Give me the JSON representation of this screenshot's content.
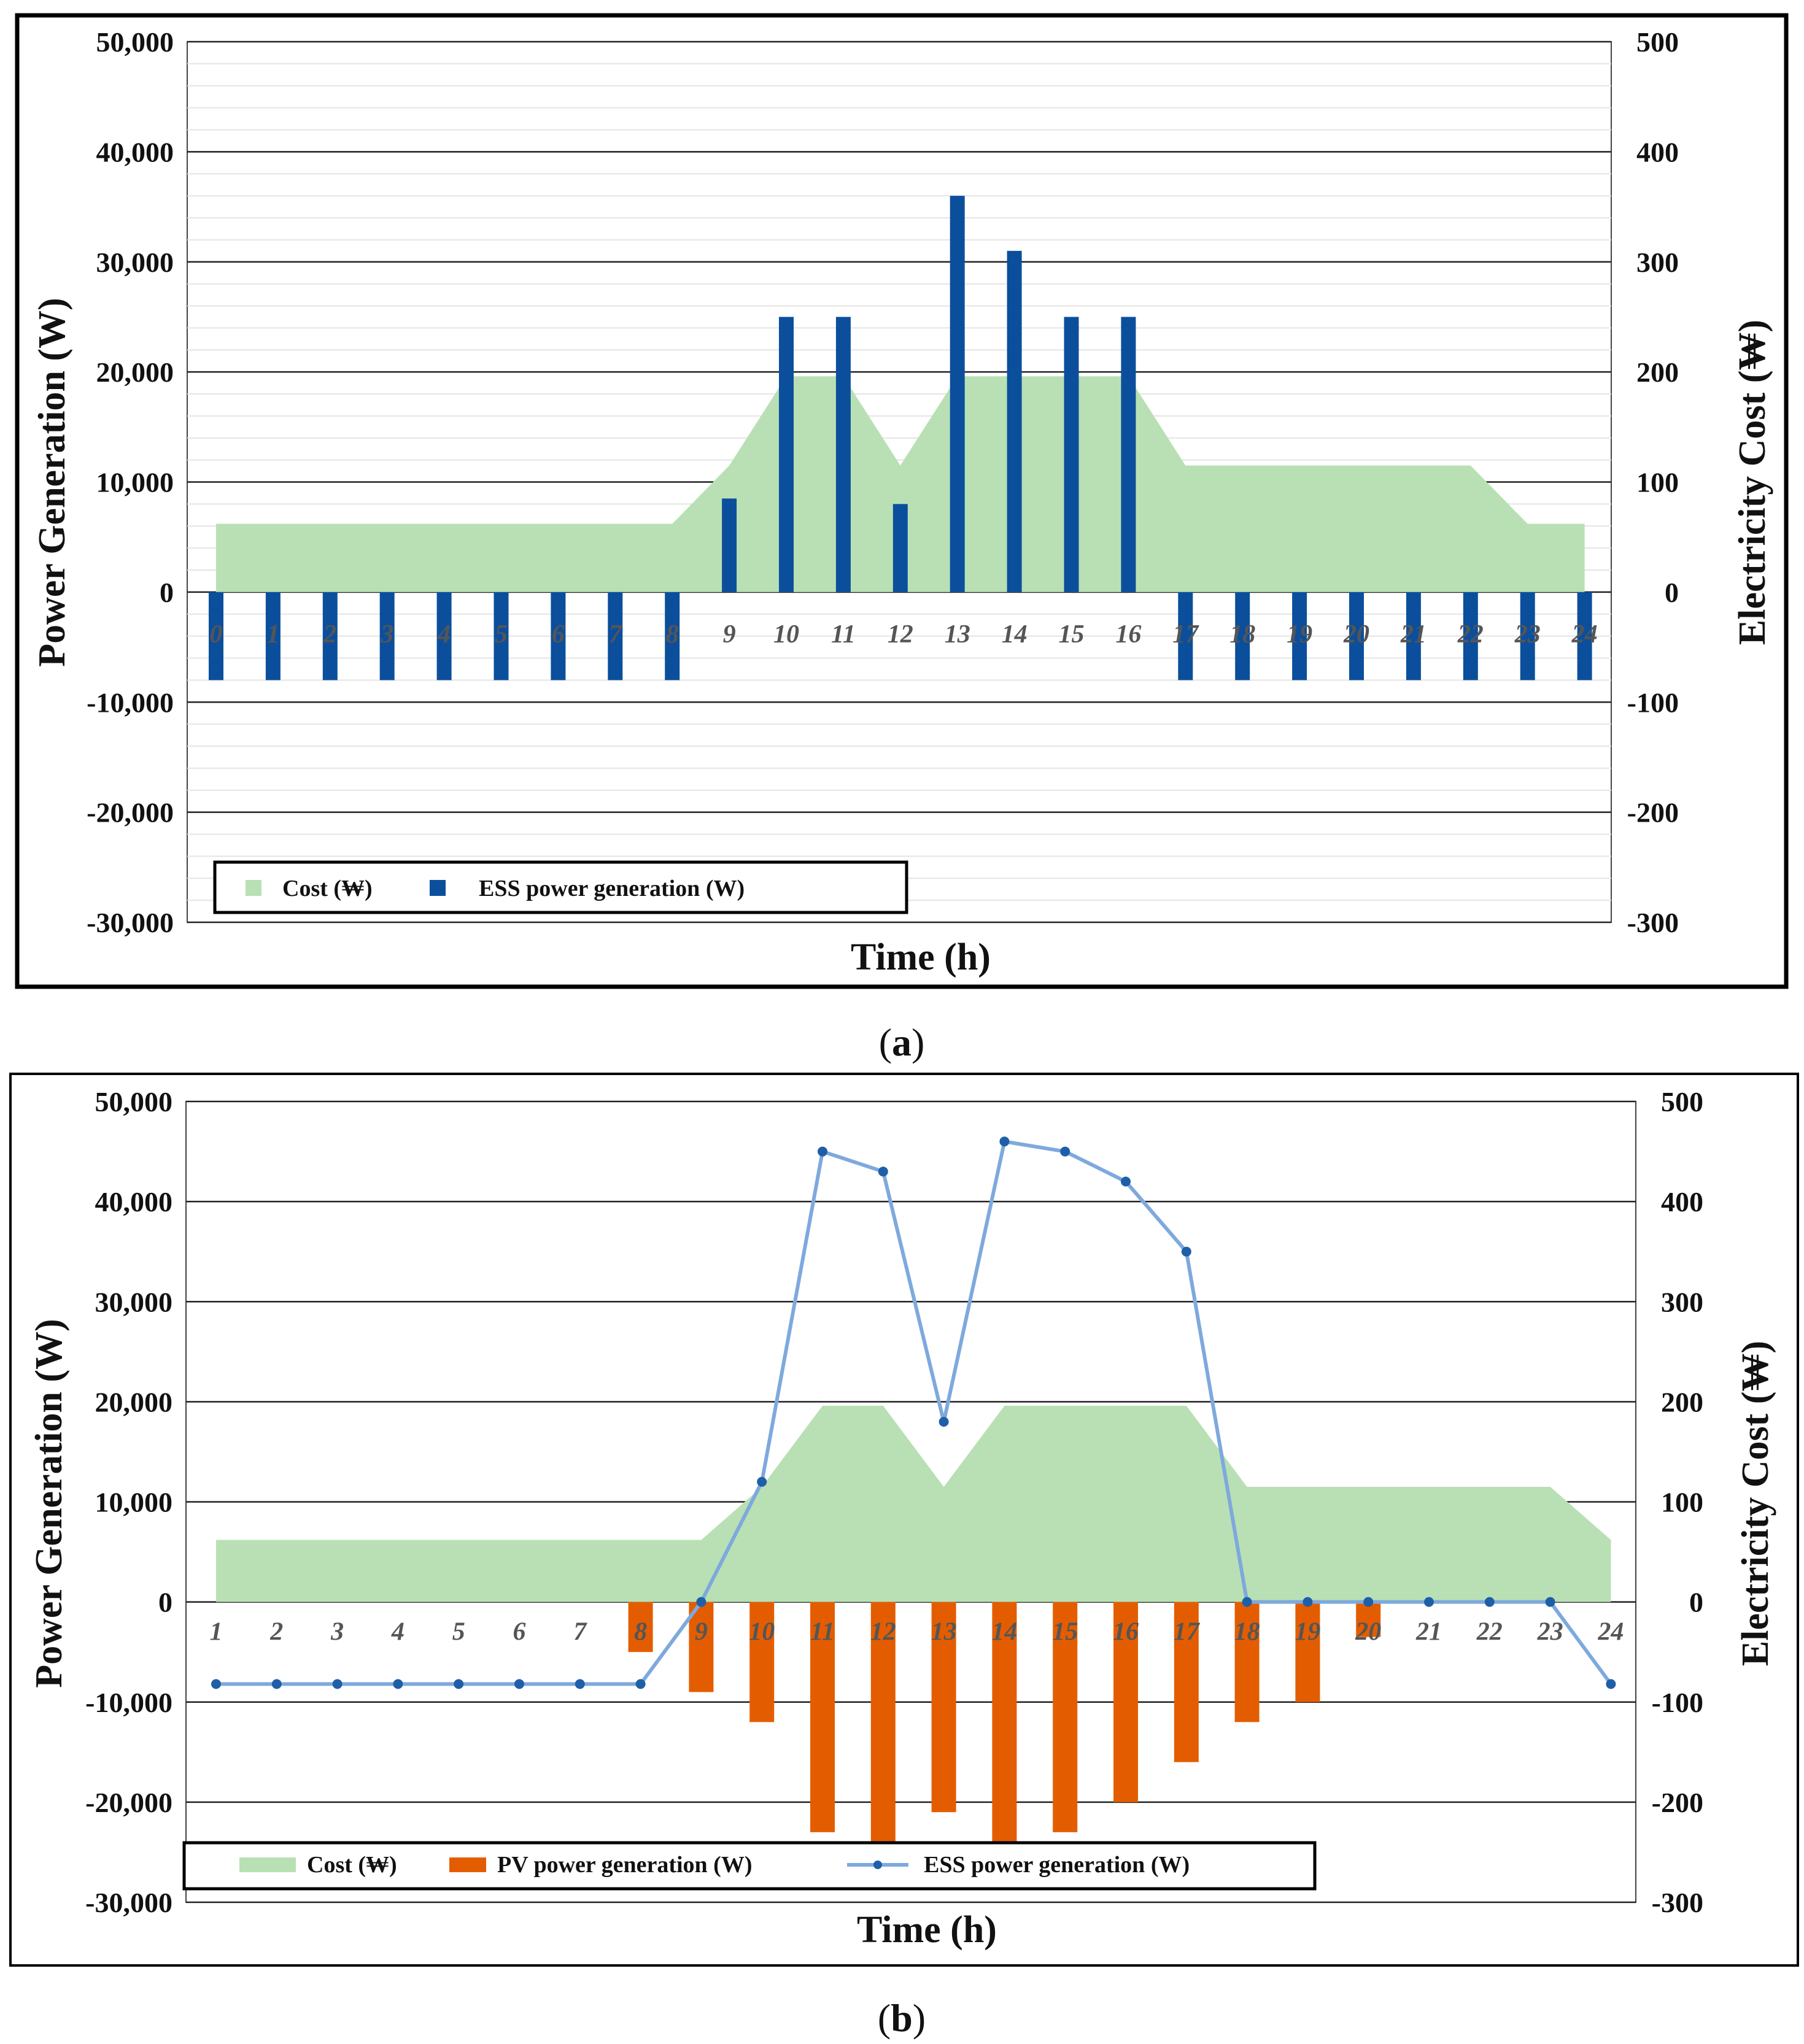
{
  "figure_a": {
    "caption_open": "(",
    "caption_letter": "a",
    "caption_close": ")",
    "xlabel": "Time (h)",
    "ylabel_left": "Power Generation (W)",
    "ylabel_right": "Electricity Cost (₩)",
    "legend": [
      "Cost (₩)",
      "ESS power generation (W)"
    ]
  },
  "figure_b": {
    "caption_open": "(",
    "caption_letter": "b",
    "caption_close": ")",
    "xlabel": "Time (h)",
    "ylabel_left": "Power Generation (W)",
    "ylabel_right": "Electricity Cost (₩)",
    "legend": [
      "Cost (₩)",
      "PV power generation (W)",
      "ESS power generation (W)"
    ]
  },
  "colors": {
    "cost": "#b9e0b4",
    "ess_bar": "#0b4f9c",
    "pv_bar": "#e35d00",
    "ess_line": "#7ea9dd",
    "ess_marker": "#1f5fa8",
    "grid_major": "#222222",
    "grid_minor": "#e4e4e4"
  },
  "chart_data": [
    {
      "id": "a",
      "type": "bar",
      "title": "",
      "xlabel": "Time (h)",
      "ylabel": "Power Generation (W)",
      "y2label": "Electricity Cost (₩)",
      "ylim": [
        -30000,
        50000
      ],
      "y2lim": [
        -300,
        500
      ],
      "yticks": [
        "50,000",
        "40,000",
        "30,000",
        "20,000",
        "10,000",
        "0",
        "-10,000",
        "-20,000",
        "-30,000"
      ],
      "y2ticks": [
        "500",
        "400",
        "300",
        "200",
        "100",
        "0",
        "-100",
        "-200",
        "-300"
      ],
      "categories": [
        "0",
        "1",
        "2",
        "3",
        "4",
        "5",
        "6",
        "7",
        "8",
        "9",
        "10",
        "11",
        "12",
        "13",
        "14",
        "15",
        "16",
        "17",
        "18",
        "19",
        "20",
        "21",
        "22",
        "23",
        "24"
      ],
      "series": [
        {
          "name": "Cost (₩)",
          "type": "area",
          "axis": "right",
          "values": [
            62,
            62,
            62,
            62,
            62,
            62,
            62,
            62,
            62,
            115,
            196,
            196,
            115,
            196,
            196,
            196,
            196,
            115,
            115,
            115,
            115,
            115,
            115,
            62,
            62
          ]
        },
        {
          "name": "ESS power generation (W)",
          "type": "bar",
          "axis": "left",
          "values": [
            -8000,
            -8000,
            -8000,
            -8000,
            -8000,
            -8000,
            -8000,
            -8000,
            -8000,
            8500,
            25000,
            25000,
            8000,
            36000,
            31000,
            25000,
            25000,
            -8000,
            -8000,
            -8000,
            -8000,
            -8000,
            -8000,
            -8000,
            -8000
          ]
        }
      ]
    },
    {
      "id": "b",
      "type": "bar",
      "title": "",
      "xlabel": "Time (h)",
      "ylabel": "Power Generation (W)",
      "y2label": "Electricity Cost (₩)",
      "ylim": [
        -30000,
        50000
      ],
      "y2lim": [
        -300,
        500
      ],
      "yticks": [
        "50,000",
        "40,000",
        "30,000",
        "20,000",
        "10,000",
        "0",
        "-10,000",
        "-20,000",
        "-30,000"
      ],
      "y2ticks": [
        "500",
        "400",
        "300",
        "200",
        "100",
        "0",
        "-100",
        "-200",
        "-300"
      ],
      "categories": [
        "1",
        "2",
        "3",
        "4",
        "5",
        "6",
        "7",
        "8",
        "9",
        "10",
        "11",
        "12",
        "13",
        "14",
        "15",
        "16",
        "17",
        "18",
        "19",
        "20",
        "21",
        "22",
        "23",
        "24"
      ],
      "series": [
        {
          "name": "Cost (₩)",
          "type": "area",
          "axis": "right",
          "values": [
            62,
            62,
            62,
            62,
            62,
            62,
            62,
            62,
            62,
            115,
            196,
            196,
            115,
            196,
            196,
            196,
            196,
            115,
            115,
            115,
            115,
            115,
            115,
            62
          ]
        },
        {
          "name": "PV power generation (W)",
          "type": "bar",
          "axis": "left",
          "values": [
            0,
            0,
            0,
            0,
            0,
            0,
            0,
            -5000,
            -9000,
            -12000,
            -23000,
            -24000,
            -21000,
            -25000,
            -23000,
            -20000,
            -16000,
            -12000,
            -10000,
            -3500,
            0,
            0,
            0,
            0
          ]
        },
        {
          "name": "ESS power generation (W)",
          "type": "line",
          "axis": "left",
          "values": [
            -8200,
            -8200,
            -8200,
            -8200,
            -8200,
            -8200,
            -8200,
            -8200,
            0,
            12000,
            45000,
            43000,
            18000,
            46000,
            45000,
            42000,
            35000,
            0,
            0,
            0,
            0,
            0,
            0,
            -8200
          ]
        }
      ]
    }
  ]
}
